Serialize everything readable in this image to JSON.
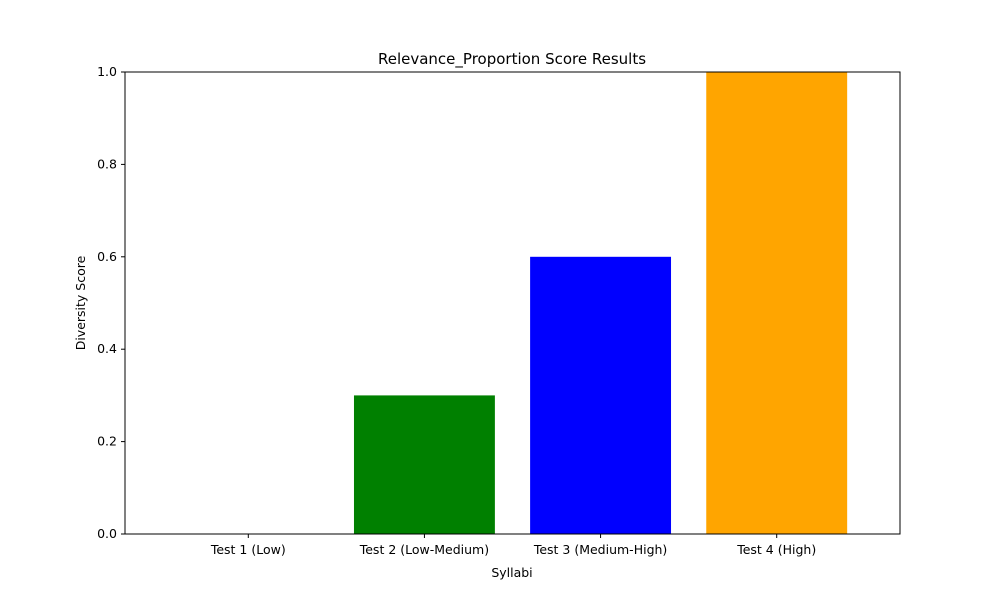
{
  "chart_data": {
    "type": "bar",
    "title": "Relevance_Proportion Score Results",
    "xlabel": "Syllabi",
    "ylabel": "Diversity Score",
    "categories": [
      "Test 1 (Low)",
      "Test 2 (Low-Medium)",
      "Test 3 (Medium-High)",
      "Test 4 (High)"
    ],
    "values": [
      0.0,
      0.3,
      0.6,
      1.0
    ],
    "colors": [
      "#ff0000",
      "#008000",
      "#0000ff",
      "#ffa500"
    ],
    "ylim": [
      0,
      1
    ],
    "yticks": [
      "0.0",
      "0.2",
      "0.4",
      "0.6",
      "0.8",
      "1.0"
    ],
    "ytick_values": [
      0,
      0.2,
      0.4,
      0.6,
      0.8,
      1.0
    ],
    "grid": false,
    "legend": "none"
  }
}
